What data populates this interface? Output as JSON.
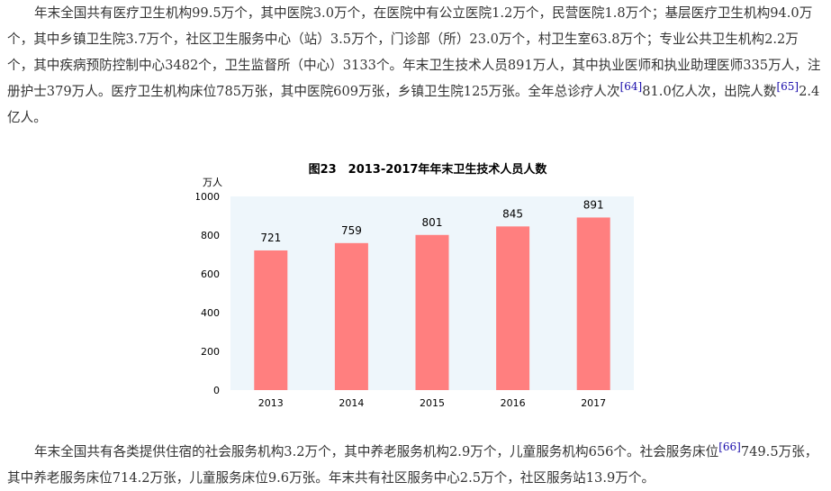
{
  "para1": {
    "segments": [
      {
        "text": "年末全国共有医疗卫生机构99.5万个，其中医院3.0万个，在医院中有公立医院1.2万个，民营医院1.8万个；基层医疗卫生机构94.0万个，其中乡镇卫生院3.7万个，社区卫生服务中心（站）3.5万个，门诊部（所）23.0万个，村卫生室63.8万个；专业公共卫生机构2.2万个，其中疾病预防控制中心3482个，卫生监督所（中心）3133个。年末卫生技术人员891万人，其中执业医师和执业助理医师335万人，注册护士379万人。医疗卫生机构床位785万张，其中医院609万张，乡镇卫生院125万张。全年总诊疗人次",
        "fn": false
      },
      {
        "text": "[64]",
        "fn": true
      },
      {
        "text": "81.0亿人次，出院人数",
        "fn": false
      },
      {
        "text": "[65]",
        "fn": true
      },
      {
        "text": "2.4亿人。",
        "fn": false
      }
    ]
  },
  "para2": {
    "segments": [
      {
        "text": "年末全国共有各类提供住宿的社会服务机构3.2万个，其中养老服务机构2.9万个，儿童服务机构656个。社会服务床位",
        "fn": false
      },
      {
        "text": "[66]",
        "fn": true
      },
      {
        "text": "749.5万张，其中养老服务床位714.2万张，儿童服务床位9.6万张。年末共有社区服务中心2.5万个，社区服务站13.9万个。",
        "fn": false
      }
    ]
  },
  "chart_data": {
    "type": "bar",
    "title": "图23　2013-2017年年末卫生技术人员人数",
    "ylabel": "万人",
    "xlabel": "",
    "categories": [
      "2013",
      "2014",
      "2015",
      "2016",
      "2017"
    ],
    "values": [
      721,
      759,
      801,
      845,
      891
    ],
    "ylim": [
      0,
      1000
    ],
    "yticks": [
      0,
      200,
      400,
      600,
      800,
      1000
    ],
    "grid": false,
    "bar_color": "#ff7f7f",
    "plot_bg": "#eef6fb",
    "data_labels": true
  }
}
